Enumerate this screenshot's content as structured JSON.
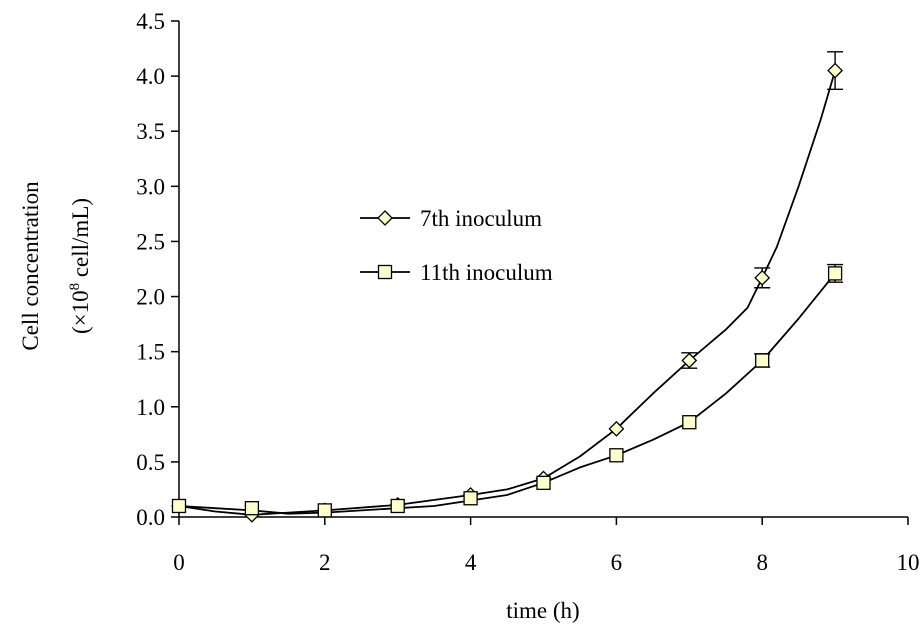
{
  "chart_data": {
    "type": "line",
    "xlabel": "time (h)",
    "ylabel_line1": "Cell concentration",
    "ylabel_line2_prefix": "(×10",
    "ylabel_line2_exponent": "8",
    "ylabel_line2_suffix": " cell/mL)",
    "xlim": [
      0,
      10
    ],
    "ylim": [
      0,
      4.5
    ],
    "x_ticks": [
      "0",
      "2",
      "4",
      "6",
      "8",
      "10"
    ],
    "y_ticks": [
      "0.0",
      "0.5",
      "1.0",
      "1.5",
      "2.0",
      "2.5",
      "3.0",
      "3.5",
      "4.0",
      "4.5"
    ],
    "grid": false,
    "legend_position": "center",
    "series": [
      {
        "name": "7th inoculum",
        "marker": "diamond",
        "marker_color": "#ffffcc",
        "x": [
          0,
          1,
          2,
          3,
          4,
          5,
          6,
          7,
          8,
          9
        ],
        "y": [
          0.1,
          0.02,
          0.06,
          0.11,
          0.2,
          0.35,
          0.8,
          1.42,
          2.17,
          4.05
        ],
        "error": [
          0.02,
          0.02,
          0.02,
          0.02,
          0.02,
          0.03,
          0.04,
          0.07,
          0.09,
          0.17
        ],
        "curve_x": [
          0,
          0.5,
          1,
          1.5,
          2,
          3,
          4,
          4.5,
          5,
          5.5,
          6,
          6.5,
          7,
          7.5,
          7.8,
          8,
          8.2,
          8.5,
          8.8,
          9
        ],
        "curve_y": [
          0.1,
          0.05,
          0.02,
          0.04,
          0.06,
          0.11,
          0.2,
          0.25,
          0.35,
          0.55,
          0.8,
          1.12,
          1.42,
          1.7,
          1.9,
          2.17,
          2.45,
          3.0,
          3.6,
          4.05
        ]
      },
      {
        "name": "11th inoculum",
        "marker": "square",
        "marker_color": "#ffffcc",
        "x": [
          0,
          1,
          2,
          3,
          4,
          5,
          6,
          7,
          8,
          9
        ],
        "y": [
          0.1,
          0.08,
          0.06,
          0.1,
          0.17,
          0.31,
          0.56,
          0.86,
          1.42,
          2.21
        ],
        "error": [
          0.02,
          0.02,
          0.02,
          0.02,
          0.02,
          0.03,
          0.03,
          0.04,
          0.06,
          0.08
        ],
        "curve_x": [
          0,
          0.5,
          1,
          1.5,
          2,
          3,
          3.5,
          4,
          4.5,
          5,
          5.5,
          6,
          6.5,
          7,
          7.5,
          8,
          8.5,
          9
        ],
        "curve_y": [
          0.1,
          0.08,
          0.06,
          0.03,
          0.04,
          0.08,
          0.1,
          0.15,
          0.2,
          0.31,
          0.45,
          0.56,
          0.7,
          0.86,
          1.12,
          1.42,
          1.8,
          2.21
        ]
      }
    ]
  }
}
